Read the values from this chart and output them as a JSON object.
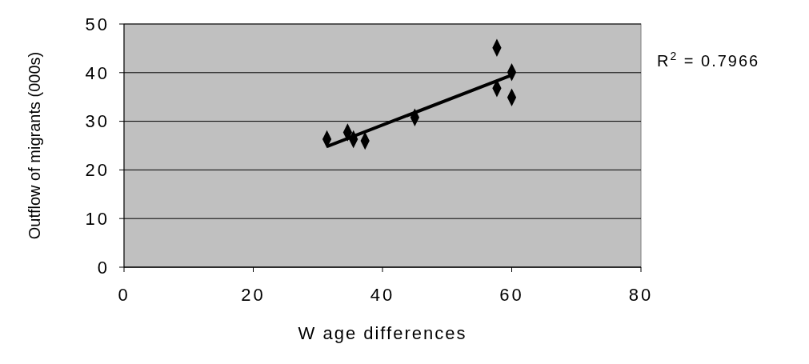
{
  "chart_data": {
    "type": "scatter",
    "xlabel": "W age differences",
    "ylabel": "Outflow of migrants (000s)",
    "annotations": [
      "R$^{2}$ = 0.7966"
    ],
    "xlim": [
      0,
      80
    ],
    "xticks": [
      0,
      20,
      40,
      60,
      80
    ],
    "ylim": [
      0,
      50
    ],
    "yticks": [
      0,
      10,
      20,
      30,
      40,
      50
    ],
    "grid": "y",
    "marker": "diamond",
    "series": [
      {
        "type": "scatter",
        "color": "#000000",
        "x": [
          31.4,
          34.6,
          35.5,
          37.3,
          45.0,
          57.7,
          60.0,
          57.7,
          60.0
        ],
        "values": [
          26.3,
          27.7,
          26.3,
          26.0,
          30.8,
          45.1,
          40.1,
          36.8,
          34.9
        ]
      },
      {
        "type": "line",
        "color": "#000000",
        "x": [
          31.4,
          60.0
        ],
        "values": [
          24.8,
          39.5
        ],
        "marker": "none",
        "line_style": "solid"
      }
    ]
  }
}
